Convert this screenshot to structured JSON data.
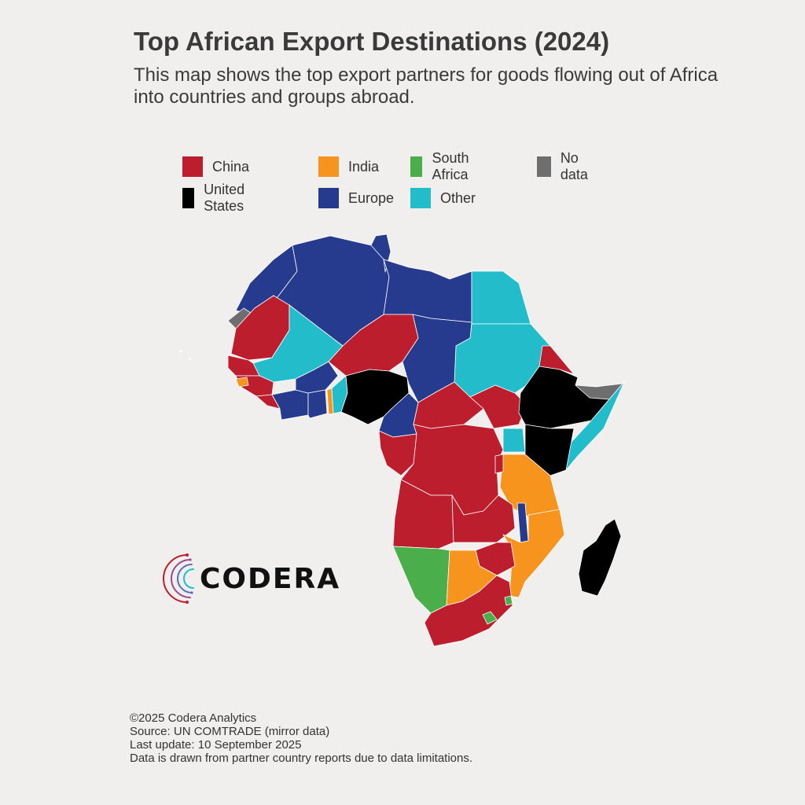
{
  "title": "Top African Export Destinations (2024)",
  "subtitle": "This map shows the top export partners for goods flowing out of Africa into countries and groups abroad.",
  "legend": [
    {
      "label": "China",
      "color": "#bd1e2d"
    },
    {
      "label": "India",
      "color": "#f7941d"
    },
    {
      "label": "South Africa",
      "color": "#4aae4a"
    },
    {
      "label": "No data",
      "color": "#6e6e6e"
    },
    {
      "label": "United States",
      "color": "#000000"
    },
    {
      "label": "Europe",
      "color": "#263b8d"
    },
    {
      "label": "Other",
      "color": "#22bccb"
    }
  ],
  "logo": {
    "text": "CODERA"
  },
  "footer": {
    "copyright": "©2025 Codera Analytics",
    "source": "Source: UN COMTRADE (mirror data)",
    "updated": "Last update: 10 September 2025",
    "note": "Data is drawn from partner country reports due to data limitations."
  }
}
